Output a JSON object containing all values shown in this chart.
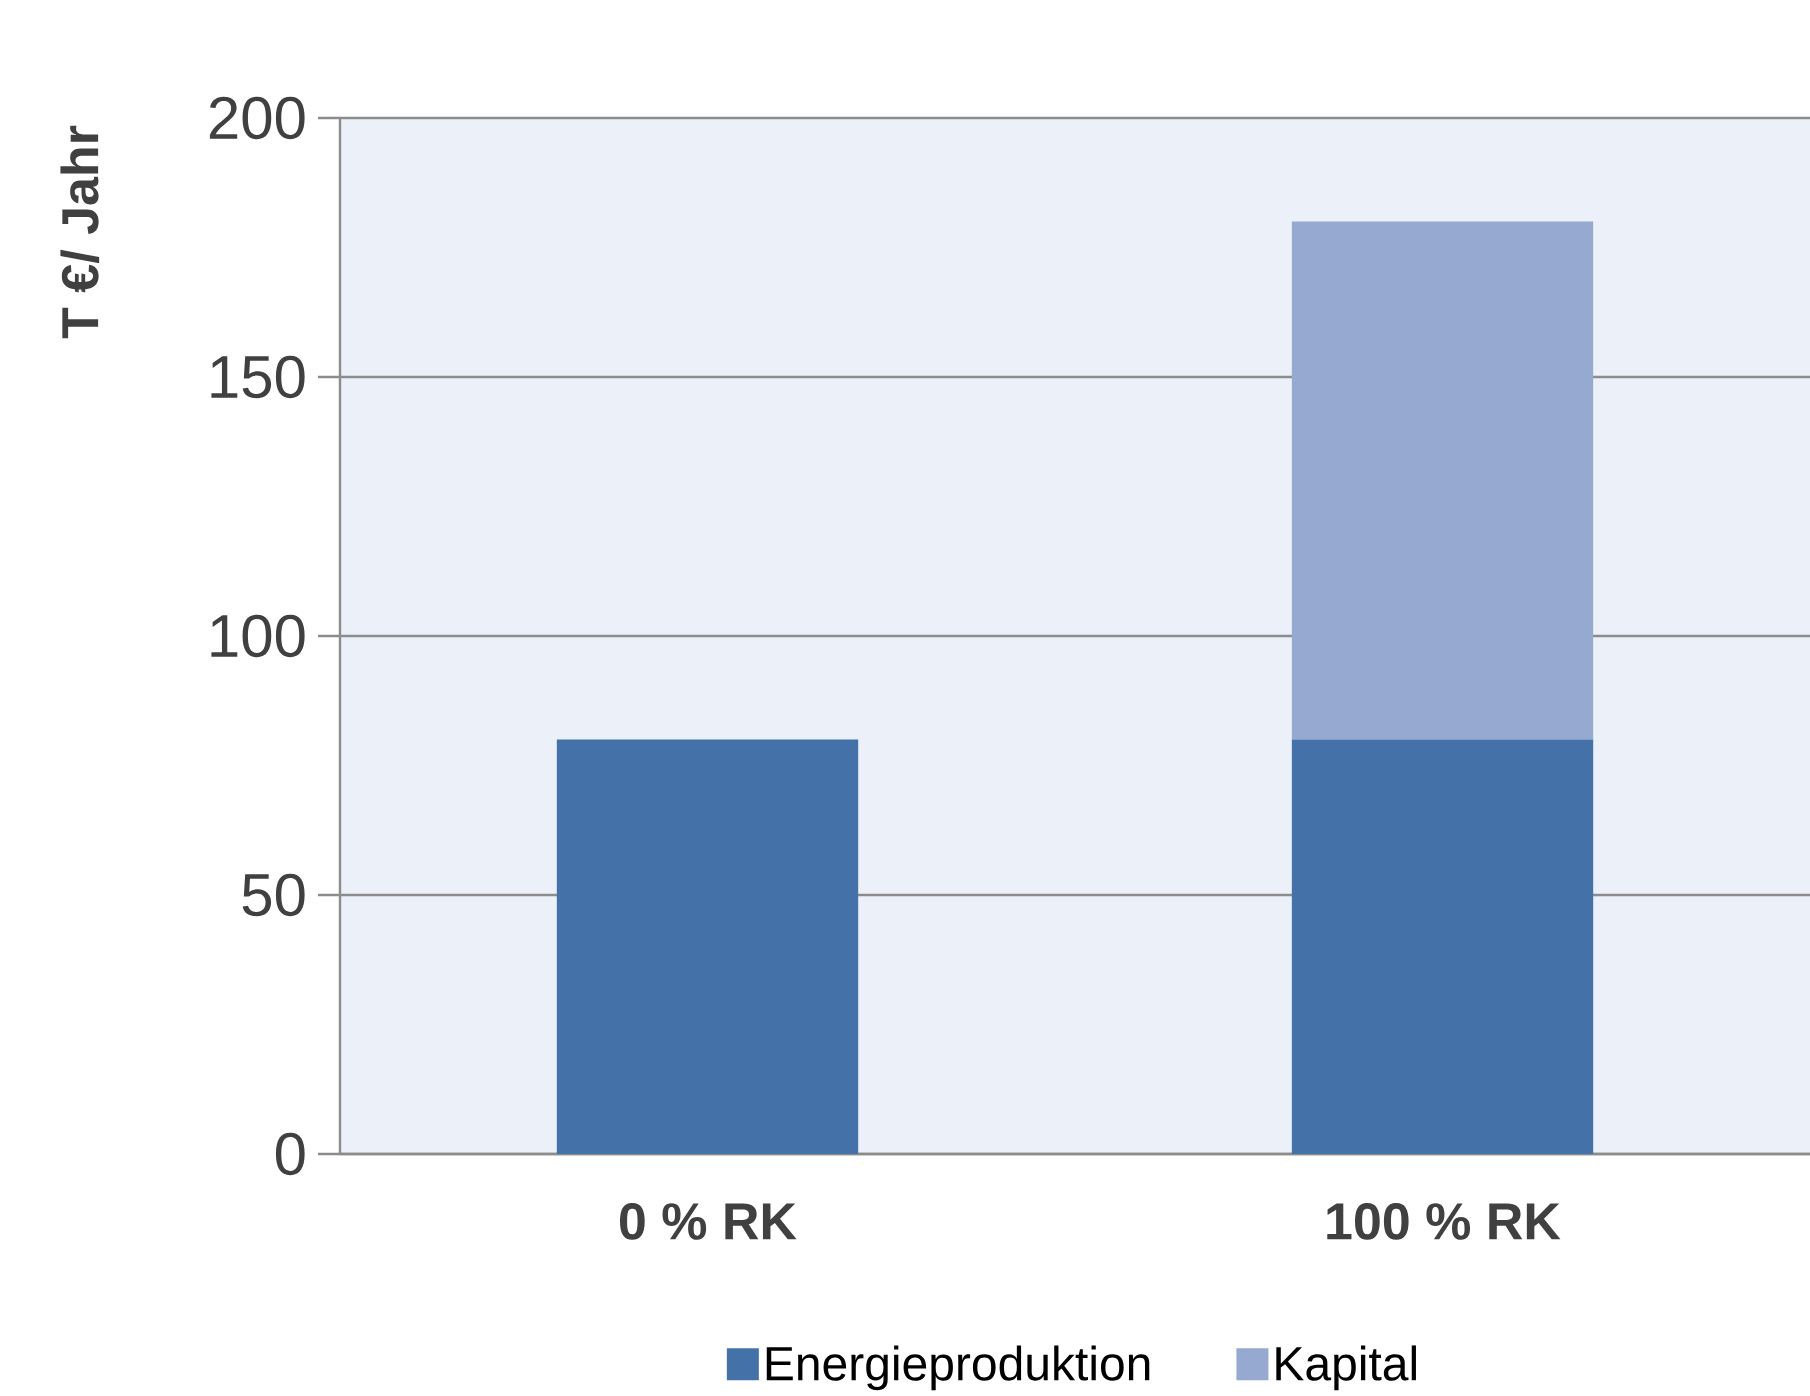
{
  "chart_data": {
    "type": "bar",
    "stacked": true,
    "ylabel": "T €/ Jahr",
    "categories": [
      "0 % RK",
      "100 % RK"
    ],
    "series": [
      {
        "name": "Energieproduktion",
        "color": "#4472a8",
        "values": [
          80,
          80
        ]
      },
      {
        "name": "Kapital",
        "color": "#95a9d1",
        "values": [
          null,
          100
        ]
      }
    ],
    "ylim": [
      0,
      200
    ],
    "yticks": [
      0,
      50,
      100,
      150,
      200
    ],
    "grid": "y",
    "legend": "bottom"
  }
}
